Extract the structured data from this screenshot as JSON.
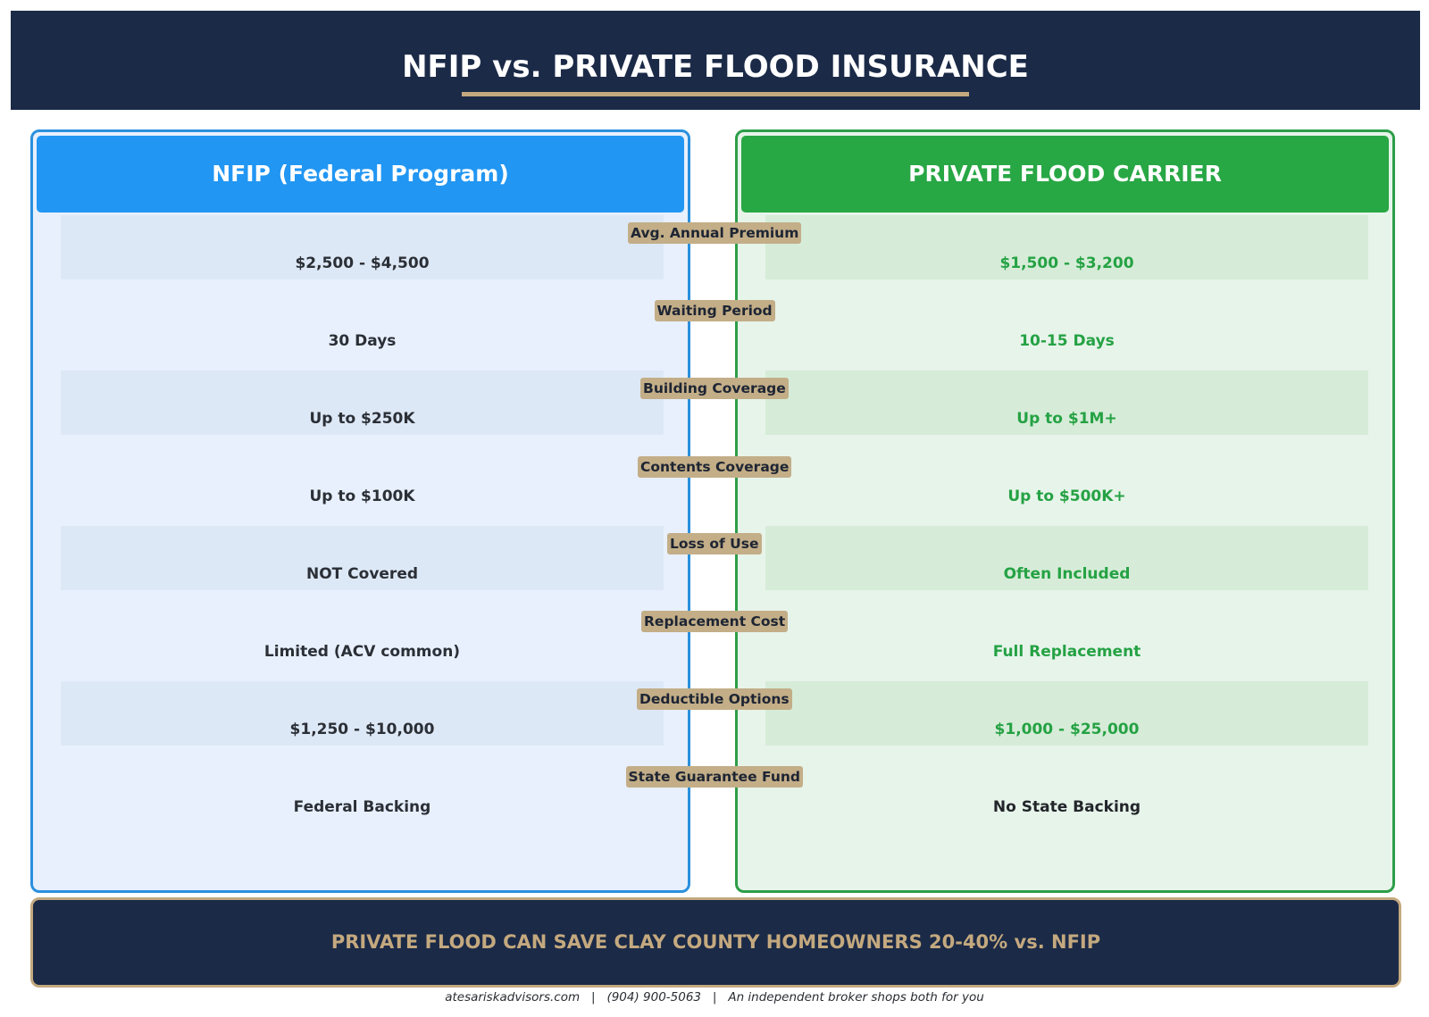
{
  "title": "NFIP vs. PRIVATE FLOOD INSURANCE",
  "colors": {
    "navy": "#1b2a47",
    "gold": "#c4a97f",
    "nfip_blue": "#2196f3",
    "private_green": "#28a745"
  },
  "nfip": {
    "header": "NFIP (Federal Program)"
  },
  "private": {
    "header": "PRIVATE FLOOD CARRIER"
  },
  "rows": [
    {
      "label": "Avg. Annual Premium",
      "nfip": "$2,500 - $4,500",
      "private": "$1,500 - $3,200"
    },
    {
      "label": "Waiting Period",
      "nfip": "30 Days",
      "private": "10-15 Days"
    },
    {
      "label": "Building Coverage",
      "nfip": "Up to $250K",
      "private": "Up to $1M+"
    },
    {
      "label": "Contents Coverage",
      "nfip": "Up to $100K",
      "private": "Up to $500K+"
    },
    {
      "label": "Loss of Use",
      "nfip": "NOT Covered",
      "private": "Often Included"
    },
    {
      "label": "Replacement Cost",
      "nfip": "Limited (ACV common)",
      "private": "Full Replacement"
    },
    {
      "label": "Deductible Options",
      "nfip": "$1,250 - $10,000",
      "private": "$1,000 - $25,000"
    },
    {
      "label": "State Guarantee Fund",
      "nfip": "Federal Backing",
      "private": "No State Backing"
    }
  ],
  "banner": "PRIVATE FLOOD CAN SAVE CLAY COUNTY HOMEOWNERS 20-40% vs. NFIP",
  "footer": {
    "website": "atesariskadvisors.com",
    "phone": "(904) 900-5063",
    "tagline": "An independent broker shops both for you"
  }
}
